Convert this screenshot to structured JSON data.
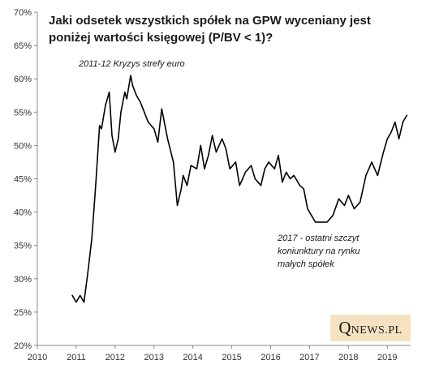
{
  "chart_data": {
    "type": "line",
    "title_lines": [
      "Jaki odsetek wszystkich spółek na GPW wyceniany jest",
      "poniżej wartości księgowej (P/BV < 1)?"
    ],
    "xlabel": "",
    "ylabel": "",
    "xlim": [
      2010,
      2019.6
    ],
    "ylim": [
      20,
      70
    ],
    "x_ticks": [
      2010,
      2011,
      2012,
      2013,
      2014,
      2015,
      2016,
      2017,
      2018,
      2019
    ],
    "y_ticks": [
      20,
      25,
      30,
      35,
      40,
      45,
      50,
      55,
      60,
      65,
      70
    ],
    "y_tick_labels": [
      "20%",
      "25%",
      "30%",
      "35%",
      "40%",
      "45%",
      "50%",
      "55%",
      "60%",
      "65%",
      "70%"
    ],
    "grid": false,
    "line_color": "#000000",
    "series": [
      {
        "x": [
          2010.9,
          2011.0,
          2011.1,
          2011.2,
          2011.3,
          2011.4,
          2011.5,
          2011.6,
          2011.65,
          2011.75,
          2011.85,
          2011.92,
          2012.0,
          2012.08,
          2012.15,
          2012.25,
          2012.3,
          2012.4,
          2012.45,
          2012.55,
          2012.65,
          2012.75,
          2012.85,
          2013.0,
          2013.1,
          2013.2,
          2013.35,
          2013.5,
          2013.6,
          2013.7,
          2013.75,
          2013.85,
          2013.95,
          2014.1,
          2014.2,
          2014.3,
          2014.4,
          2014.5,
          2014.6,
          2014.75,
          2014.85,
          2014.95,
          2015.1,
          2015.2,
          2015.28,
          2015.35,
          2015.5,
          2015.6,
          2015.75,
          2015.85,
          2015.95,
          2016.1,
          2016.2,
          2016.3,
          2016.4,
          2016.5,
          2016.6,
          2016.75,
          2016.85,
          2016.95,
          2017.05,
          2017.15,
          2017.3,
          2017.45,
          2017.6,
          2017.75,
          2017.9,
          2018.0,
          2018.15,
          2018.3,
          2018.45,
          2018.6,
          2018.75,
          2018.9,
          2019.0,
          2019.1,
          2019.2,
          2019.3,
          2019.4,
          2019.5
        ],
        "values": [
          27.5,
          26.5,
          27.5,
          26.5,
          31,
          36,
          44,
          53,
          52.5,
          56,
          58,
          51.5,
          49,
          51,
          55,
          58,
          57,
          60.5,
          59,
          57.5,
          56.5,
          55,
          53.5,
          52.5,
          50.5,
          55.5,
          51,
          47.5,
          41,
          43.5,
          45.5,
          44,
          47,
          46.5,
          50,
          46.5,
          48.5,
          51.5,
          49,
          51,
          49.5,
          46.5,
          47.5,
          44,
          45,
          46,
          47,
          45,
          44,
          46.5,
          47.5,
          46.5,
          48.5,
          44.5,
          46,
          45,
          45.5,
          44,
          43.5,
          40.5,
          39.5,
          38.5,
          38.5,
          38.5,
          39.5,
          42,
          41,
          42.5,
          40.5,
          41.5,
          45.5,
          47.5,
          45.5,
          49,
          51,
          52,
          53.5,
          51,
          53.5,
          54.5
        ]
      }
    ],
    "annotations": [
      {
        "id": "euro_crisis",
        "text": "2011-12 Kryzys strefy euro"
      },
      {
        "id": "peak_2017",
        "lines": [
          "2017 - ostatni szczyt",
          "koniunktury na rynku",
          "małych spółek"
        ]
      }
    ]
  },
  "logo": {
    "q": "Q",
    "rest": "NEWS.PL",
    "background": "#f5e2c2"
  }
}
